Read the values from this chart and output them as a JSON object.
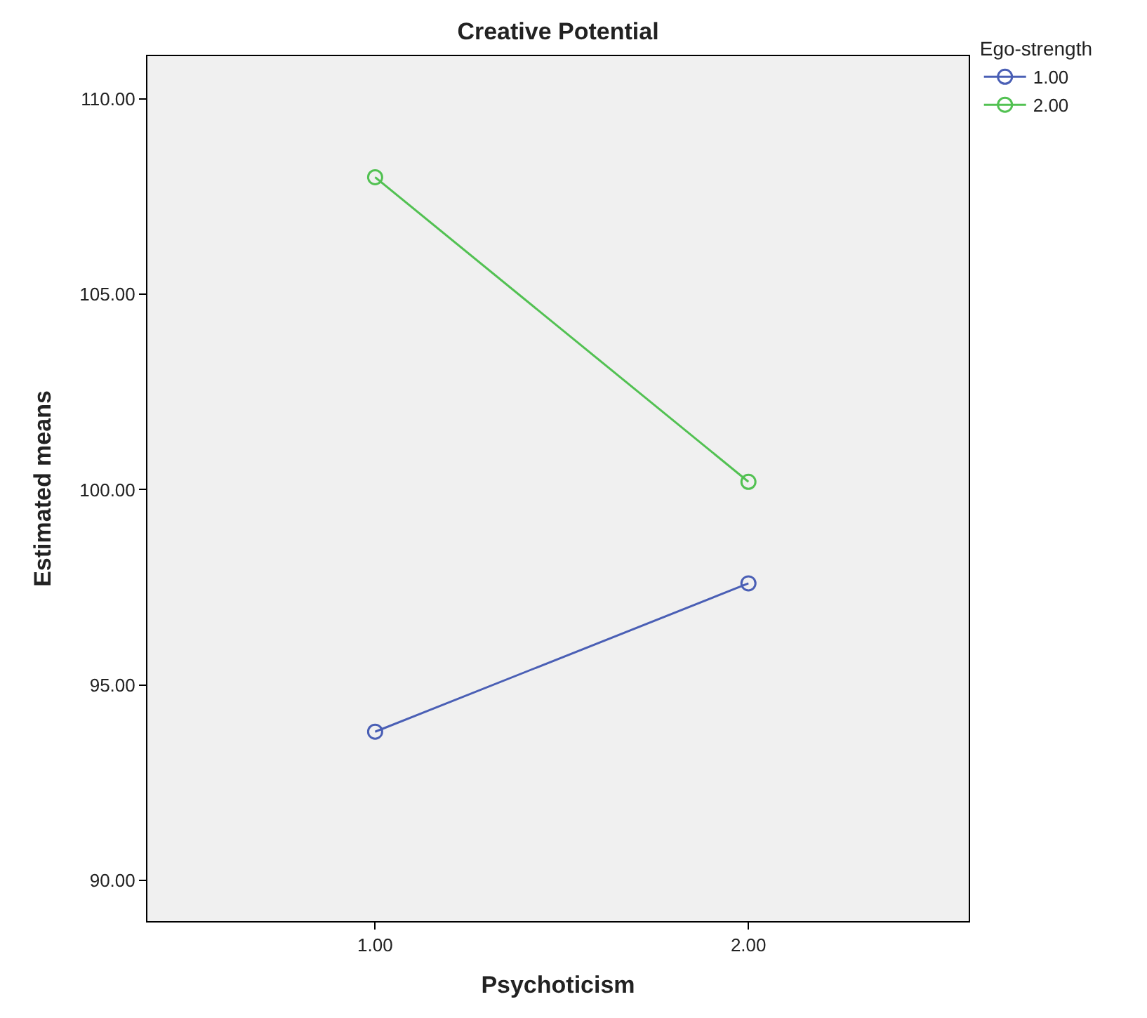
{
  "chart_data": {
    "type": "line",
    "title": "Creative Potential",
    "xlabel": "Psychoticism",
    "ylabel": "Estimated means",
    "legend_title": "Ego-strength",
    "x": [
      1,
      2
    ],
    "series": [
      {
        "name": "1.00",
        "color": "#4a5fb5",
        "values": [
          93.8,
          97.6
        ]
      },
      {
        "name": "2.00",
        "color": "#52c152",
        "values": [
          108.0,
          100.2
        ]
      }
    ],
    "xlim": [
      0.39,
      2.59
    ],
    "xticks": [
      {
        "value": 1,
        "label": "1.00"
      },
      {
        "value": 2,
        "label": "2.00"
      }
    ],
    "ylim": [
      88.95,
      111.1
    ],
    "yticks": [
      {
        "value": 90,
        "label": "90.00"
      },
      {
        "value": 95,
        "label": "95.00"
      },
      {
        "value": 100,
        "label": "100.00"
      },
      {
        "value": 105,
        "label": "105.00"
      },
      {
        "value": 110,
        "label": "110.00"
      }
    ],
    "grid": false,
    "legend": "top right",
    "marker": "circle",
    "line_style": "solid"
  }
}
